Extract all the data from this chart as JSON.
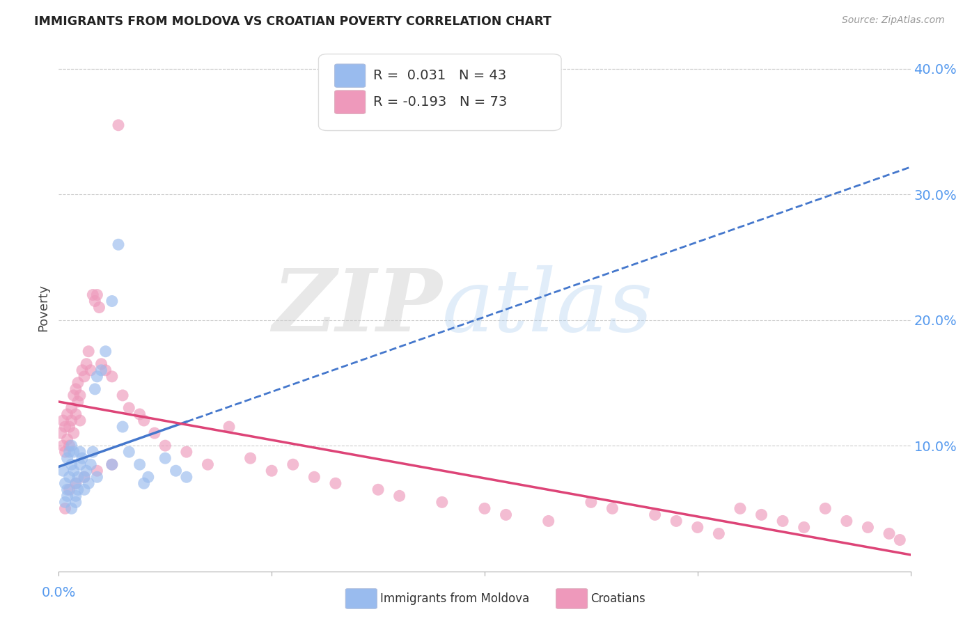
{
  "title": "IMMIGRANTS FROM MOLDOVA VS CROATIAN POVERTY CORRELATION CHART",
  "source": "Source: ZipAtlas.com",
  "ylabel": "Poverty",
  "xlim": [
    0.0,
    0.4
  ],
  "ylim": [
    0.0,
    0.42
  ],
  "yticks": [
    0.1,
    0.2,
    0.3,
    0.4
  ],
  "ytick_labels": [
    "10.0%",
    "20.0%",
    "30.0%",
    "40.0%"
  ],
  "r_moldova": 0.031,
  "n_moldova": 43,
  "r_croatian": -0.193,
  "n_croatian": 73,
  "color_moldova": "#99bbee",
  "color_croatian": "#ee99bb",
  "color_moldova_line": "#4477cc",
  "color_croatian_line": "#dd4477",
  "seed": 12345,
  "moldova_x_data": [
    0.002,
    0.003,
    0.004,
    0.004,
    0.005,
    0.005,
    0.006,
    0.006,
    0.007,
    0.007,
    0.008,
    0.008,
    0.009,
    0.009,
    0.01,
    0.01,
    0.011,
    0.012,
    0.013,
    0.014,
    0.015,
    0.016,
    0.017,
    0.018,
    0.02,
    0.022,
    0.025,
    0.028,
    0.03,
    0.033,
    0.038,
    0.042,
    0.05,
    0.055,
    0.06,
    0.003,
    0.004,
    0.006,
    0.008,
    0.012,
    0.018,
    0.025,
    0.04
  ],
  "moldova_y_data": [
    0.08,
    0.07,
    0.065,
    0.09,
    0.075,
    0.095,
    0.085,
    0.1,
    0.08,
    0.095,
    0.07,
    0.06,
    0.065,
    0.075,
    0.085,
    0.095,
    0.09,
    0.075,
    0.08,
    0.07,
    0.085,
    0.095,
    0.145,
    0.155,
    0.16,
    0.175,
    0.215,
    0.26,
    0.115,
    0.095,
    0.085,
    0.075,
    0.09,
    0.08,
    0.075,
    0.055,
    0.06,
    0.05,
    0.055,
    0.065,
    0.075,
    0.085,
    0.07
  ],
  "croatian_x_data": [
    0.001,
    0.002,
    0.002,
    0.003,
    0.003,
    0.004,
    0.004,
    0.005,
    0.005,
    0.006,
    0.006,
    0.007,
    0.007,
    0.008,
    0.008,
    0.009,
    0.009,
    0.01,
    0.01,
    0.011,
    0.012,
    0.013,
    0.014,
    0.015,
    0.016,
    0.017,
    0.018,
    0.019,
    0.02,
    0.022,
    0.025,
    0.028,
    0.03,
    0.033,
    0.038,
    0.04,
    0.045,
    0.05,
    0.06,
    0.07,
    0.08,
    0.09,
    0.1,
    0.11,
    0.12,
    0.13,
    0.15,
    0.16,
    0.18,
    0.2,
    0.21,
    0.23,
    0.25,
    0.26,
    0.28,
    0.29,
    0.3,
    0.31,
    0.32,
    0.33,
    0.34,
    0.35,
    0.36,
    0.37,
    0.38,
    0.39,
    0.395,
    0.003,
    0.005,
    0.008,
    0.012,
    0.018,
    0.025
  ],
  "croatian_y_data": [
    0.11,
    0.1,
    0.12,
    0.095,
    0.115,
    0.105,
    0.125,
    0.1,
    0.115,
    0.13,
    0.12,
    0.11,
    0.14,
    0.125,
    0.145,
    0.135,
    0.15,
    0.12,
    0.14,
    0.16,
    0.155,
    0.165,
    0.175,
    0.16,
    0.22,
    0.215,
    0.22,
    0.21,
    0.165,
    0.16,
    0.155,
    0.355,
    0.14,
    0.13,
    0.125,
    0.12,
    0.11,
    0.1,
    0.095,
    0.085,
    0.115,
    0.09,
    0.08,
    0.085,
    0.075,
    0.07,
    0.065,
    0.06,
    0.055,
    0.05,
    0.045,
    0.04,
    0.055,
    0.05,
    0.045,
    0.04,
    0.035,
    0.03,
    0.05,
    0.045,
    0.04,
    0.035,
    0.05,
    0.04,
    0.035,
    0.03,
    0.025,
    0.05,
    0.065,
    0.07,
    0.075,
    0.08,
    0.085
  ]
}
